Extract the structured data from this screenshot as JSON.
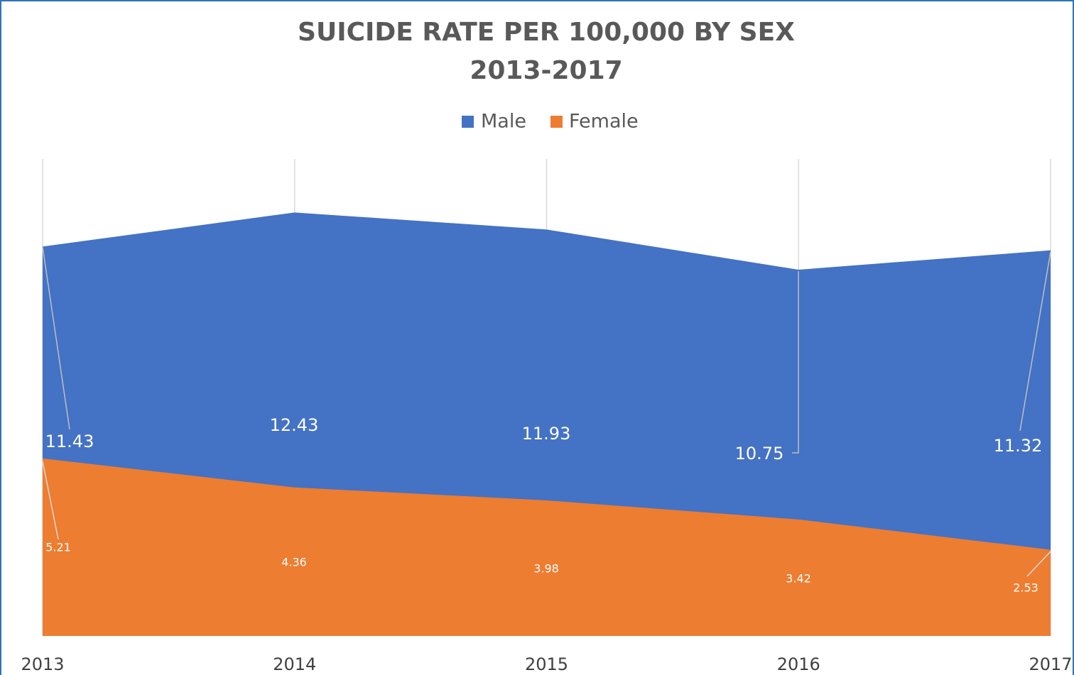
{
  "chart_data": {
    "type": "area",
    "title": "SUICIDE RATE PER 100,000 BY SEX",
    "subtitle": "2013-2017",
    "categories": [
      "2013",
      "2014",
      "2015",
      "2016",
      "2017"
    ],
    "series": [
      {
        "name": "Male",
        "color": "#4472c4",
        "values": [
          11.43,
          12.43,
          11.93,
          10.75,
          11.32
        ]
      },
      {
        "name": "Female",
        "color": "#ed7d31",
        "values": [
          5.21,
          4.36,
          3.98,
          3.42,
          2.53
        ]
      }
    ],
    "ylim": [
      0,
      14
    ],
    "grid": true,
    "legend": "top"
  }
}
